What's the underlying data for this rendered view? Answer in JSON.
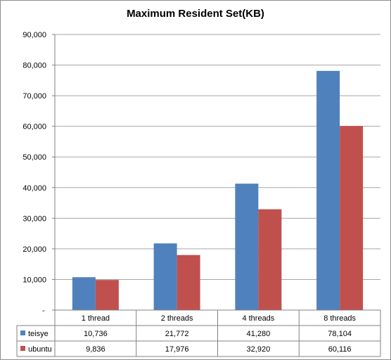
{
  "chart_data": {
    "type": "bar",
    "title": "Maximum Resident Set(KB)",
    "xlabel": "",
    "ylabel": "",
    "categories": [
      "1 thread",
      "2 threads",
      "4 threads",
      "8 threads"
    ],
    "series": [
      {
        "name": "teisye",
        "values": [
          10736,
          21772,
          41280,
          78104
        ],
        "labels": [
          "10,736",
          "21,772",
          "41,280",
          "78,104"
        ],
        "color": "#4f81bd"
      },
      {
        "name": "ubuntu",
        "values": [
          9836,
          17976,
          32920,
          60116
        ],
        "labels": [
          "9,836",
          "17,976",
          "32,920",
          "60,116"
        ],
        "color": "#c0504d"
      }
    ],
    "ylim": [
      0,
      90000
    ],
    "yticks": [
      0,
      10000,
      20000,
      30000,
      40000,
      50000,
      60000,
      70000,
      80000,
      90000
    ],
    "ytick_labels": [
      "-",
      "10,000",
      "20,000",
      "30,000",
      "40,000",
      "50,000",
      "60,000",
      "70,000",
      "80,000",
      "90,000"
    ],
    "grid": true,
    "legend": "data-table"
  }
}
